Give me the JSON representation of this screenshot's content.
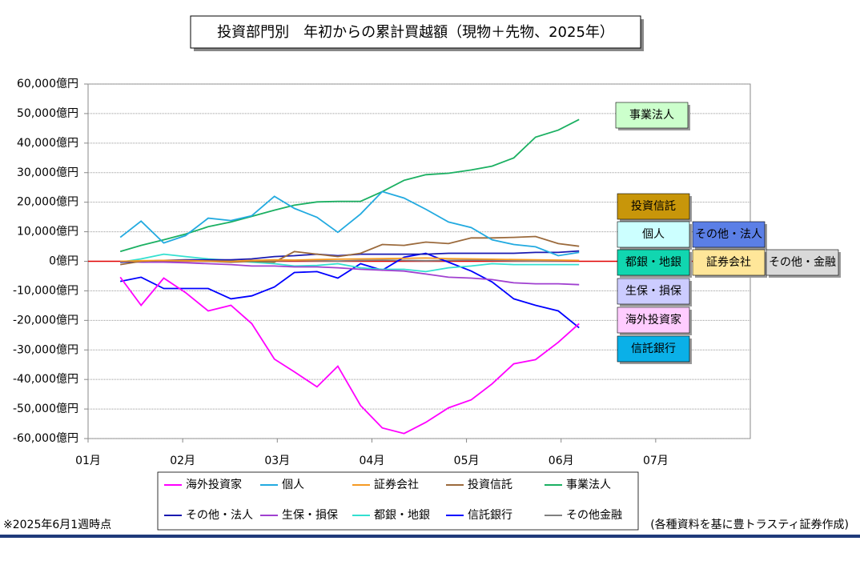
{
  "chart_data": {
    "type": "line",
    "title": "投資部門別　年初からの累計買越額（現物＋先物、2025年）",
    "x": [
      1.34,
      1.56,
      1.8,
      2.03,
      2.27,
      2.51,
      2.73,
      2.97,
      3.18,
      3.42,
      3.64,
      3.88,
      4.11,
      4.34,
      4.57,
      4.81,
      5.05,
      5.27,
      5.5,
      5.73,
      5.97,
      6.19
    ],
    "xlim": [
      1,
      8
    ],
    "xticks": [
      {
        "value": 1,
        "label": "01月"
      },
      {
        "value": 2,
        "label": "02月"
      },
      {
        "value": 3,
        "label": "03月"
      },
      {
        "value": 4,
        "label": "04月"
      },
      {
        "value": 5,
        "label": "05月"
      },
      {
        "value": 6,
        "label": "06月"
      },
      {
        "value": 7,
        "label": "07月"
      }
    ],
    "ylim": [
      -60000,
      60000
    ],
    "yticks": [
      {
        "value": 60000,
        "label": "60,000億円"
      },
      {
        "value": 50000,
        "label": "50,000億円"
      },
      {
        "value": 40000,
        "label": "40,000億円"
      },
      {
        "value": 30000,
        "label": "30,000億円"
      },
      {
        "value": 20000,
        "label": "20,000億円"
      },
      {
        "value": 10000,
        "label": "10,000億円"
      },
      {
        "value": 0,
        "label": "0億円"
      },
      {
        "value": -10000,
        "label": "-10,000億円"
      },
      {
        "value": -20000,
        "label": "-20,000億円"
      },
      {
        "value": -30000,
        "label": "-30,000億円"
      },
      {
        "value": -40000,
        "label": "-40,000億円"
      },
      {
        "value": -50000,
        "label": "-50,000億円"
      },
      {
        "value": -60000,
        "label": "-60,000億円"
      }
    ],
    "grid": true,
    "zero_line_color": "#e00000",
    "series": [
      {
        "name": "海外投資家",
        "color": "#ff00ff",
        "values": [
          -5400,
          -14900,
          -5700,
          -10600,
          -16800,
          -14900,
          -21100,
          -33100,
          -37400,
          -42500,
          -35500,
          -48800,
          -56400,
          -58300,
          -54500,
          -49600,
          -46900,
          -41500,
          -34700,
          -33300,
          -27400,
          -21100
        ]
      },
      {
        "name": "個人",
        "color": "#22aae0",
        "values": [
          8100,
          13600,
          6200,
          8700,
          14600,
          13800,
          15400,
          22000,
          17900,
          14900,
          9800,
          16000,
          23600,
          21400,
          17600,
          13300,
          11400,
          7300,
          5700,
          4900,
          1900,
          3000
        ]
      },
      {
        "name": "証券会社",
        "color": "#f59a23",
        "values": [
          0,
          200,
          300,
          200,
          100,
          0,
          300,
          500,
          400,
          600,
          700,
          800,
          900,
          1000,
          1100,
          900,
          800,
          700,
          600,
          500,
          400,
          300
        ]
      },
      {
        "name": "投資信託",
        "color": "#9b6a3c",
        "values": [
          -1100,
          0,
          300,
          300,
          0,
          -300,
          0,
          -300,
          3300,
          2400,
          1600,
          2700,
          5700,
          5400,
          6500,
          6000,
          7900,
          7900,
          8100,
          8400,
          6000,
          5100
        ]
      },
      {
        "name": "事業法人",
        "color": "#1bb062",
        "values": [
          3300,
          5400,
          7300,
          9200,
          11700,
          13300,
          15200,
          17300,
          19000,
          20100,
          20300,
          20300,
          23600,
          27400,
          29300,
          29800,
          30900,
          32200,
          35000,
          42000,
          44400,
          48000
        ]
      },
      {
        "name": "その他・法人",
        "color": "#1a1ab0",
        "values": [
          -300,
          0,
          300,
          500,
          500,
          500,
          800,
          1600,
          1900,
          2400,
          1900,
          2400,
          2400,
          2400,
          2400,
          2700,
          2700,
          2700,
          2700,
          3000,
          3000,
          3500
        ]
      },
      {
        "name": "生保・損保",
        "color": "#a040d0",
        "values": [
          0,
          -300,
          -300,
          -500,
          -800,
          -1100,
          -1600,
          -1600,
          -1900,
          -1900,
          -2200,
          -2700,
          -3000,
          -3300,
          -4300,
          -5400,
          -5700,
          -6200,
          -7300,
          -7600,
          -7600,
          -7900
        ]
      },
      {
        "name": "都銀・地銀",
        "color": "#33e0d0",
        "values": [
          -300,
          800,
          2400,
          1600,
          800,
          300,
          -300,
          -800,
          -1600,
          -1400,
          -800,
          -2200,
          -2700,
          -2700,
          -3500,
          -2200,
          -1600,
          -800,
          -1100,
          -1100,
          -1100,
          -1100
        ]
      },
      {
        "name": "信託銀行",
        "color": "#0000ff",
        "values": [
          -6800,
          -5400,
          -9200,
          -9200,
          -9200,
          -12700,
          -11700,
          -8700,
          -3800,
          -3500,
          -5700,
          -800,
          -3000,
          1400,
          2700,
          -300,
          -3300,
          -7000,
          -12700,
          -14900,
          -16800,
          -22500
        ]
      },
      {
        "name": "その他金融",
        "color": "#808080",
        "values": [
          0,
          100,
          200,
          100,
          0,
          -100,
          0,
          200,
          300,
          200,
          100,
          300,
          400,
          300,
          200,
          300,
          400,
          300,
          200,
          100,
          200,
          300
        ]
      }
    ],
    "annotations": [
      {
        "text": "事業法人",
        "color": "#ccffcc"
      },
      {
        "text": "投資信託",
        "color": "#c8960a"
      },
      {
        "text": "個人",
        "color": "#ccffff"
      },
      {
        "text": "その他・法人",
        "color": "#5b7fe6"
      },
      {
        "text": "都銀・地銀",
        "color": "#11d6b0"
      },
      {
        "text": "証券会社",
        "color": "#ffe699"
      },
      {
        "text": "その他・金融",
        "color": "#d9d9d9"
      },
      {
        "text": "生保・損保",
        "color": "#ccccff"
      },
      {
        "text": "海外投資家",
        "color": "#ffccff"
      },
      {
        "text": "信託銀行",
        "color": "#0ab0e8"
      }
    ],
    "footnote": "※2025年6月1週時点",
    "source": "(各種資料を基に豊トラスティ証券作成)"
  }
}
